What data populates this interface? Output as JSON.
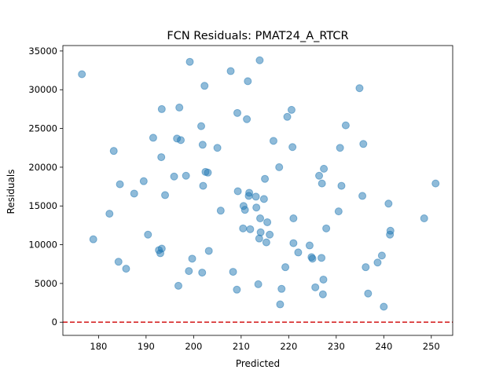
{
  "chart_data": {
    "type": "scatter",
    "title": "FCN Residuals: PMAT24_A_RTCR",
    "xlabel": "Predicted",
    "ylabel": "Residuals",
    "xlim": [
      172.5,
      254.5
    ],
    "ylim": [
      -1700,
      35700
    ],
    "xticks": [
      180,
      190,
      200,
      210,
      220,
      230,
      240,
      250
    ],
    "yticks": [
      0,
      5000,
      10000,
      15000,
      20000,
      25000,
      30000,
      35000
    ],
    "point_color": "#1f77b4",
    "reference_line": {
      "y": 0,
      "color": "#d62728",
      "style": "dashed"
    },
    "grid": false,
    "legend": "none",
    "points": [
      {
        "x": 176.5,
        "y": 32000
      },
      {
        "x": 178.9,
        "y": 10700
      },
      {
        "x": 182.3,
        "y": 14000
      },
      {
        "x": 183.2,
        "y": 22100
      },
      {
        "x": 184.2,
        "y": 7800
      },
      {
        "x": 184.5,
        "y": 17800
      },
      {
        "x": 185.8,
        "y": 6900
      },
      {
        "x": 187.5,
        "y": 16600
      },
      {
        "x": 189.5,
        "y": 18200
      },
      {
        "x": 190.4,
        "y": 11300
      },
      {
        "x": 191.5,
        "y": 23800
      },
      {
        "x": 192.7,
        "y": 9300
      },
      {
        "x": 193.0,
        "y": 8900
      },
      {
        "x": 193.2,
        "y": 21300
      },
      {
        "x": 193.3,
        "y": 27500
      },
      {
        "x": 193.3,
        "y": 9500
      },
      {
        "x": 194.0,
        "y": 16400
      },
      {
        "x": 195.9,
        "y": 18800
      },
      {
        "x": 196.5,
        "y": 23700
      },
      {
        "x": 196.8,
        "y": 4700
      },
      {
        "x": 197.0,
        "y": 27700
      },
      {
        "x": 197.3,
        "y": 23500
      },
      {
        "x": 198.4,
        "y": 18900
      },
      {
        "x": 199.0,
        "y": 6600
      },
      {
        "x": 199.2,
        "y": 33600
      },
      {
        "x": 199.7,
        "y": 8200
      },
      {
        "x": 201.6,
        "y": 25300
      },
      {
        "x": 201.8,
        "y": 6400
      },
      {
        "x": 201.9,
        "y": 22900
      },
      {
        "x": 202.0,
        "y": 17600
      },
      {
        "x": 202.3,
        "y": 30500
      },
      {
        "x": 202.5,
        "y": 19400
      },
      {
        "x": 203.0,
        "y": 19300
      },
      {
        "x": 203.2,
        "y": 9200
      },
      {
        "x": 205.0,
        "y": 22500
      },
      {
        "x": 205.7,
        "y": 14400
      },
      {
        "x": 207.8,
        "y": 32400
      },
      {
        "x": 208.3,
        "y": 6500
      },
      {
        "x": 209.1,
        "y": 4200
      },
      {
        "x": 209.2,
        "y": 27000
      },
      {
        "x": 209.3,
        "y": 16900
      },
      {
        "x": 210.4,
        "y": 12100
      },
      {
        "x": 210.5,
        "y": 15000
      },
      {
        "x": 210.8,
        "y": 14500
      },
      {
        "x": 211.2,
        "y": 26200
      },
      {
        "x": 211.4,
        "y": 31100
      },
      {
        "x": 211.6,
        "y": 16300
      },
      {
        "x": 211.7,
        "y": 16700
      },
      {
        "x": 211.9,
        "y": 12000
      },
      {
        "x": 213.1,
        "y": 16200
      },
      {
        "x": 213.2,
        "y": 14800
      },
      {
        "x": 213.6,
        "y": 4900
      },
      {
        "x": 213.8,
        "y": 10800
      },
      {
        "x": 213.9,
        "y": 33800
      },
      {
        "x": 214.0,
        "y": 13400
      },
      {
        "x": 214.1,
        "y": 11600
      },
      {
        "x": 214.8,
        "y": 15900
      },
      {
        "x": 215.0,
        "y": 18500
      },
      {
        "x": 215.3,
        "y": 10300
      },
      {
        "x": 215.5,
        "y": 12900
      },
      {
        "x": 216.0,
        "y": 11300
      },
      {
        "x": 216.8,
        "y": 23400
      },
      {
        "x": 218.0,
        "y": 20000
      },
      {
        "x": 218.2,
        "y": 2300
      },
      {
        "x": 218.5,
        "y": 4300
      },
      {
        "x": 219.3,
        "y": 7100
      },
      {
        "x": 219.7,
        "y": 26500
      },
      {
        "x": 220.6,
        "y": 27400
      },
      {
        "x": 220.8,
        "y": 22600
      },
      {
        "x": 221.0,
        "y": 13400
      },
      {
        "x": 221.0,
        "y": 10200
      },
      {
        "x": 222.0,
        "y": 9000
      },
      {
        "x": 224.4,
        "y": 9900
      },
      {
        "x": 224.8,
        "y": 8400
      },
      {
        "x": 225.0,
        "y": 8200
      },
      {
        "x": 225.6,
        "y": 4500
      },
      {
        "x": 226.4,
        "y": 18900
      },
      {
        "x": 226.9,
        "y": 8300
      },
      {
        "x": 227.0,
        "y": 17900
      },
      {
        "x": 227.2,
        "y": 3600
      },
      {
        "x": 227.3,
        "y": 5500
      },
      {
        "x": 227.4,
        "y": 19800
      },
      {
        "x": 227.9,
        "y": 12100
      },
      {
        "x": 230.5,
        "y": 14300
      },
      {
        "x": 230.8,
        "y": 22500
      },
      {
        "x": 231.1,
        "y": 17600
      },
      {
        "x": 232.0,
        "y": 25400
      },
      {
        "x": 234.9,
        "y": 30200
      },
      {
        "x": 235.5,
        "y": 16300
      },
      {
        "x": 235.7,
        "y": 23000
      },
      {
        "x": 236.2,
        "y": 7100
      },
      {
        "x": 236.7,
        "y": 3700
      },
      {
        "x": 238.7,
        "y": 7700
      },
      {
        "x": 239.6,
        "y": 8600
      },
      {
        "x": 240.0,
        "y": 2000
      },
      {
        "x": 241.0,
        "y": 15300
      },
      {
        "x": 241.3,
        "y": 11300
      },
      {
        "x": 241.4,
        "y": 11800
      },
      {
        "x": 248.5,
        "y": 13400
      },
      {
        "x": 250.9,
        "y": 17900
      }
    ]
  }
}
